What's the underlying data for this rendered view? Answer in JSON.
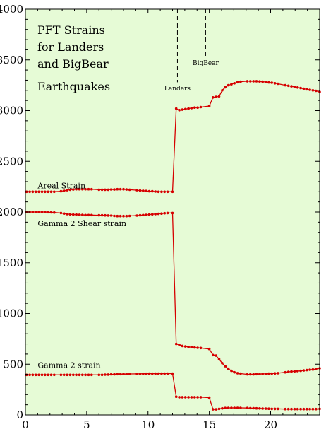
{
  "chart_data": {
    "type": "line",
    "title_lines": [
      "PFT Strains",
      "for Landers",
      "and BigBear",
      "Earthquakes"
    ],
    "xlabel": "",
    "ylabel": "",
    "xlim": [
      0,
      24
    ],
    "ylim": [
      0,
      4000
    ],
    "x_ticks": [
      0,
      5,
      10,
      15,
      20
    ],
    "y_ticks": [
      0,
      500,
      1000,
      1500,
      2000,
      2500,
      3000,
      3500,
      4000
    ],
    "grid": false,
    "background_color": "#e6fbd6",
    "series_color": "#d60000",
    "events": [
      {
        "label": "Landers",
        "x": 12.4,
        "line_from": 4000,
        "line_to": 3280,
        "label_y": 3200
      },
      {
        "label": "BigBear",
        "x": 14.7,
        "line_from": 4000,
        "line_to": 3530,
        "label_y": 3450
      }
    ],
    "series": [
      {
        "name": "Areal Strain",
        "label_at": [
          1,
          2235
        ],
        "values": [
          [
            0.1,
            2200
          ],
          [
            0.35,
            2200
          ],
          [
            0.6,
            2200
          ],
          [
            0.85,
            2200
          ],
          [
            1.1,
            2200
          ],
          [
            1.35,
            2200
          ],
          [
            1.6,
            2200
          ],
          [
            1.85,
            2200
          ],
          [
            2.1,
            2200
          ],
          [
            2.35,
            2200
          ],
          [
            2.9,
            2205
          ],
          [
            3.15,
            2210
          ],
          [
            3.4,
            2215
          ],
          [
            3.65,
            2220
          ],
          [
            3.9,
            2222
          ],
          [
            4.15,
            2225
          ],
          [
            4.4,
            2225
          ],
          [
            4.65,
            2225
          ],
          [
            4.9,
            2225
          ],
          [
            5.15,
            2225
          ],
          [
            5.4,
            2225
          ],
          [
            6.0,
            2220
          ],
          [
            6.25,
            2220
          ],
          [
            6.5,
            2220
          ],
          [
            6.75,
            2220
          ],
          [
            7.0,
            2222
          ],
          [
            7.25,
            2222
          ],
          [
            7.5,
            2225
          ],
          [
            7.75,
            2225
          ],
          [
            8.0,
            2225
          ],
          [
            8.25,
            2222
          ],
          [
            8.5,
            2220
          ],
          [
            9.1,
            2215
          ],
          [
            9.35,
            2212
          ],
          [
            9.6,
            2210
          ],
          [
            9.85,
            2208
          ],
          [
            10.1,
            2205
          ],
          [
            10.35,
            2205
          ],
          [
            10.6,
            2202
          ],
          [
            10.85,
            2200
          ],
          [
            11.1,
            2200
          ],
          [
            11.35,
            2200
          ],
          [
            11.6,
            2200
          ],
          [
            12.0,
            2200
          ],
          [
            12.3,
            3020
          ],
          [
            12.55,
            3005
          ],
          [
            12.8,
            3010
          ],
          [
            13.05,
            3015
          ],
          [
            13.3,
            3020
          ],
          [
            13.55,
            3025
          ],
          [
            13.8,
            3030
          ],
          [
            14.05,
            3030
          ],
          [
            14.3,
            3035
          ],
          [
            15.0,
            3045
          ],
          [
            15.3,
            3130
          ],
          [
            15.55,
            3135
          ],
          [
            15.8,
            3140
          ],
          [
            16.05,
            3200
          ],
          [
            16.3,
            3230
          ],
          [
            16.55,
            3250
          ],
          [
            16.8,
            3260
          ],
          [
            17.05,
            3270
          ],
          [
            17.3,
            3280
          ],
          [
            17.55,
            3285
          ],
          [
            18.1,
            3290
          ],
          [
            18.35,
            3290
          ],
          [
            18.6,
            3290
          ],
          [
            18.85,
            3290
          ],
          [
            19.1,
            3288
          ],
          [
            19.35,
            3285
          ],
          [
            19.6,
            3282
          ],
          [
            19.85,
            3278
          ],
          [
            20.1,
            3275
          ],
          [
            20.35,
            3270
          ],
          [
            20.6,
            3265
          ],
          [
            21.2,
            3250
          ],
          [
            21.45,
            3245
          ],
          [
            21.7,
            3240
          ],
          [
            21.95,
            3235
          ],
          [
            22.2,
            3228
          ],
          [
            22.45,
            3222
          ],
          [
            22.7,
            3215
          ],
          [
            22.95,
            3210
          ],
          [
            23.2,
            3205
          ],
          [
            23.45,
            3200
          ],
          [
            23.7,
            3195
          ],
          [
            24.0,
            3185
          ]
        ]
      },
      {
        "name": "Gamma 2 Shear strain",
        "label_at": [
          1,
          1860
        ],
        "values": [
          [
            0.1,
            2000
          ],
          [
            0.35,
            2000
          ],
          [
            0.6,
            2000
          ],
          [
            0.85,
            2000
          ],
          [
            1.1,
            2000
          ],
          [
            1.35,
            2000
          ],
          [
            1.6,
            2000
          ],
          [
            1.85,
            1998
          ],
          [
            2.1,
            1997
          ],
          [
            2.35,
            1995
          ],
          [
            2.9,
            1990
          ],
          [
            3.15,
            1985
          ],
          [
            3.4,
            1980
          ],
          [
            3.65,
            1978
          ],
          [
            3.9,
            1975
          ],
          [
            4.15,
            1975
          ],
          [
            4.4,
            1973
          ],
          [
            4.65,
            1972
          ],
          [
            4.9,
            1970
          ],
          [
            5.15,
            1970
          ],
          [
            5.4,
            1970
          ],
          [
            6.0,
            1968
          ],
          [
            6.25,
            1968
          ],
          [
            6.5,
            1967
          ],
          [
            6.75,
            1966
          ],
          [
            7.0,
            1965
          ],
          [
            7.25,
            1962
          ],
          [
            7.5,
            1960
          ],
          [
            7.75,
            1960
          ],
          [
            8.0,
            1960
          ],
          [
            8.25,
            1960
          ],
          [
            8.5,
            1962
          ],
          [
            9.1,
            1965
          ],
          [
            9.35,
            1968
          ],
          [
            9.6,
            1970
          ],
          [
            9.85,
            1972
          ],
          [
            10.1,
            1975
          ],
          [
            10.35,
            1978
          ],
          [
            10.6,
            1980
          ],
          [
            10.85,
            1982
          ],
          [
            11.1,
            1985
          ],
          [
            11.35,
            1988
          ],
          [
            11.6,
            1990
          ],
          [
            12.0,
            1990
          ],
          [
            12.3,
            700
          ],
          [
            12.55,
            690
          ],
          [
            12.8,
            680
          ],
          [
            13.05,
            675
          ],
          [
            13.3,
            670
          ],
          [
            13.55,
            668
          ],
          [
            13.8,
            665
          ],
          [
            14.05,
            662
          ],
          [
            14.3,
            660
          ],
          [
            15.0,
            650
          ],
          [
            15.3,
            590
          ],
          [
            15.55,
            585
          ],
          [
            15.8,
            550
          ],
          [
            16.05,
            510
          ],
          [
            16.3,
            480
          ],
          [
            16.55,
            455
          ],
          [
            16.8,
            435
          ],
          [
            17.05,
            420
          ],
          [
            17.3,
            412
          ],
          [
            17.55,
            408
          ],
          [
            18.1,
            400
          ],
          [
            18.35,
            400
          ],
          [
            18.6,
            400
          ],
          [
            18.85,
            402
          ],
          [
            19.1,
            403
          ],
          [
            19.35,
            405
          ],
          [
            19.6,
            405
          ],
          [
            19.85,
            407
          ],
          [
            20.1,
            408
          ],
          [
            20.35,
            410
          ],
          [
            20.6,
            412
          ],
          [
            21.2,
            420
          ],
          [
            21.45,
            425
          ],
          [
            21.7,
            428
          ],
          [
            21.95,
            430
          ],
          [
            22.2,
            432
          ],
          [
            22.45,
            435
          ],
          [
            22.7,
            438
          ],
          [
            22.95,
            442
          ],
          [
            23.2,
            445
          ],
          [
            23.45,
            448
          ],
          [
            23.7,
            452
          ],
          [
            24.0,
            460
          ]
        ]
      },
      {
        "name": "Gamma 2 strain",
        "label_at": [
          1,
          465
        ],
        "values": [
          [
            0.1,
            395
          ],
          [
            0.35,
            395
          ],
          [
            0.6,
            395
          ],
          [
            0.85,
            395
          ],
          [
            1.1,
            395
          ],
          [
            1.35,
            395
          ],
          [
            1.6,
            395
          ],
          [
            1.85,
            395
          ],
          [
            2.1,
            395
          ],
          [
            2.35,
            395
          ],
          [
            2.9,
            395
          ],
          [
            3.15,
            395
          ],
          [
            3.4,
            395
          ],
          [
            3.65,
            395
          ],
          [
            3.9,
            395
          ],
          [
            4.15,
            395
          ],
          [
            4.4,
            395
          ],
          [
            4.65,
            395
          ],
          [
            4.9,
            395
          ],
          [
            5.15,
            395
          ],
          [
            5.4,
            395
          ],
          [
            6.0,
            395
          ],
          [
            6.25,
            395
          ],
          [
            6.5,
            397
          ],
          [
            6.75,
            398
          ],
          [
            7.0,
            400
          ],
          [
            7.25,
            400
          ],
          [
            7.5,
            402
          ],
          [
            7.75,
            402
          ],
          [
            8.0,
            403
          ],
          [
            8.25,
            403
          ],
          [
            8.5,
            404
          ],
          [
            9.1,
            405
          ],
          [
            9.35,
            405
          ],
          [
            9.6,
            406
          ],
          [
            9.85,
            406
          ],
          [
            10.1,
            407
          ],
          [
            10.35,
            407
          ],
          [
            10.6,
            408
          ],
          [
            10.85,
            408
          ],
          [
            11.1,
            408
          ],
          [
            11.35,
            408
          ],
          [
            11.6,
            408
          ],
          [
            12.0,
            408
          ],
          [
            12.3,
            180
          ],
          [
            12.55,
            175
          ],
          [
            12.8,
            175
          ],
          [
            13.05,
            175
          ],
          [
            13.3,
            175
          ],
          [
            13.55,
            175
          ],
          [
            13.8,
            175
          ],
          [
            14.05,
            175
          ],
          [
            14.3,
            175
          ],
          [
            15.0,
            170
          ],
          [
            15.3,
            55
          ],
          [
            15.55,
            55
          ],
          [
            15.8,
            60
          ],
          [
            16.05,
            65
          ],
          [
            16.3,
            68
          ],
          [
            16.55,
            70
          ],
          [
            16.8,
            70
          ],
          [
            17.05,
            70
          ],
          [
            17.3,
            70
          ],
          [
            17.55,
            70
          ],
          [
            18.1,
            68
          ],
          [
            18.35,
            67
          ],
          [
            18.6,
            66
          ],
          [
            18.85,
            65
          ],
          [
            19.1,
            64
          ],
          [
            19.35,
            63
          ],
          [
            19.6,
            62
          ],
          [
            19.85,
            61
          ],
          [
            20.1,
            60
          ],
          [
            20.35,
            60
          ],
          [
            20.6,
            60
          ],
          [
            21.2,
            58
          ],
          [
            21.45,
            58
          ],
          [
            21.7,
            58
          ],
          [
            21.95,
            58
          ],
          [
            22.2,
            58
          ],
          [
            22.45,
            58
          ],
          [
            22.7,
            58
          ],
          [
            22.95,
            58
          ],
          [
            23.2,
            58
          ],
          [
            23.45,
            58
          ],
          [
            23.7,
            58
          ],
          [
            24.0,
            60
          ]
        ]
      }
    ]
  }
}
